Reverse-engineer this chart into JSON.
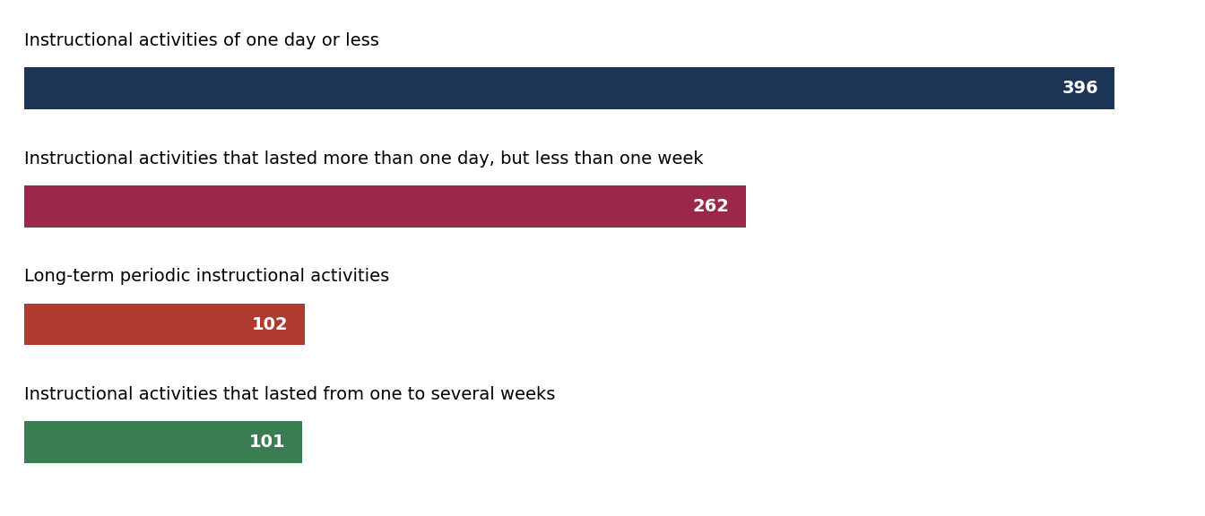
{
  "categories": [
    "Instructional activities of one day or less",
    "Instructional activities that lasted more than one day, but less than one week",
    "Long-term periodic instructional activities",
    "Instructional activities that lasted from one to several weeks"
  ],
  "values": [
    396,
    262,
    102,
    101
  ],
  "colors": [
    "#1c3557",
    "#9b2848",
    "#b03a2e",
    "#3a7d52"
  ],
  "max_value": 420,
  "label_fontsize": 14,
  "value_fontsize": 14,
  "background_color": "#ffffff",
  "text_color": "#ffffff",
  "label_color": "#000000"
}
